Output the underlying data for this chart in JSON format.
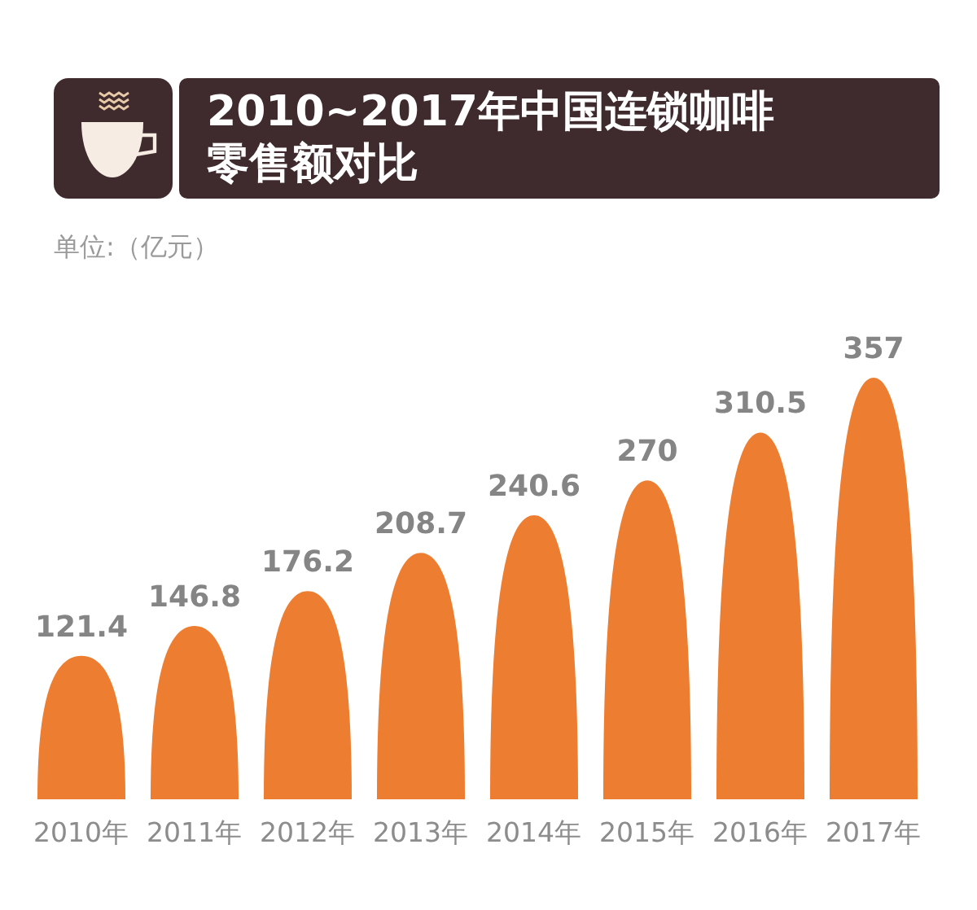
{
  "chart_data": {
    "type": "bar",
    "title": "2010~2017年中国连锁咖啡零售额对比",
    "annotations": [
      "单位:（亿元）"
    ],
    "categories": [
      "2010年",
      "2011年",
      "2012年",
      "2013年",
      "2014年",
      "2015年",
      "2016年",
      "2017年"
    ],
    "values": [
      121.4,
      146.8,
      176.2,
      208.7,
      240.6,
      270,
      310.5,
      357
    ],
    "color": "#ed7d31",
    "data_labels": true
  }
}
